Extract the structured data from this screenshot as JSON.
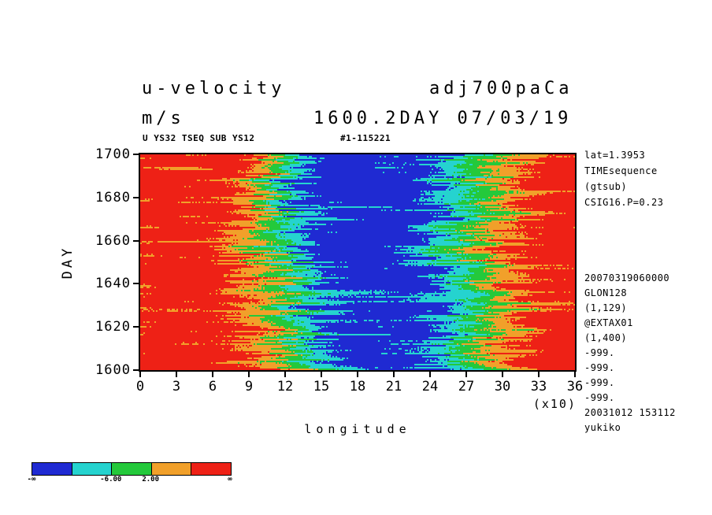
{
  "titles": {
    "left_line1": "u-velocity",
    "left_line2": "m/s",
    "right_line1": "adj700paCa",
    "right_line2": "1600.2DAY 07/03/19"
  },
  "subheader": {
    "left": "U YS32 TSEQ SUB YS12",
    "right": "#1-115221"
  },
  "axes": {
    "y_label": "DAY",
    "x_label": "longitude",
    "x_unit": "(x10)"
  },
  "right_panel": {
    "block1": [
      "lat=1.3953",
      "TIMEsequence",
      "(gtsub)",
      "CSIG16.P=0.23"
    ],
    "block2": [
      "20070319060000",
      "GLON128",
      "(1,129)",
      "@EXTAX01",
      "(1,400)",
      "-999.",
      "-999.",
      "-999.",
      "-999.",
      "20031012 153112",
      "yukiko"
    ]
  },
  "chart_data": {
    "type": "heatmap",
    "title": "u-velocity (m/s) adj700paCa 1600.2DAY 07/03/19",
    "xlabel": "longitude (x10)",
    "ylabel": "DAY",
    "xlim": [
      0,
      36
    ],
    "ylim": [
      1600,
      1700
    ],
    "xticks": [
      0,
      3,
      6,
      9,
      12,
      15,
      18,
      21,
      24,
      27,
      30,
      33,
      36
    ],
    "yticks": [
      1700,
      1680,
      1660,
      1640,
      1620,
      1600
    ],
    "x": [
      0,
      3,
      6,
      9,
      12,
      15,
      18,
      21,
      24,
      27,
      30,
      33,
      36
    ],
    "y": [
      1700,
      1690,
      1680,
      1670,
      1660,
      1650,
      1640,
      1630,
      1620,
      1610,
      1600
    ],
    "values": [
      [
        16,
        16,
        16,
        12,
        -4,
        -20,
        -20,
        -20,
        -16,
        -4,
        6,
        14,
        16
      ],
      [
        16,
        16,
        16,
        10,
        -8,
        -20,
        -22,
        -20,
        -18,
        -8,
        2,
        12,
        16
      ],
      [
        16,
        16,
        14,
        8,
        -10,
        -22,
        -22,
        -20,
        -16,
        -6,
        4,
        14,
        16
      ],
      [
        16,
        16,
        14,
        6,
        -6,
        -18,
        -22,
        -22,
        -14,
        -2,
        8,
        14,
        16
      ],
      [
        16,
        16,
        12,
        4,
        -8,
        -20,
        -22,
        -20,
        -12,
        0,
        10,
        16,
        16
      ],
      [
        16,
        16,
        14,
        6,
        -4,
        -18,
        -22,
        -20,
        -14,
        -4,
        8,
        14,
        16
      ],
      [
        16,
        16,
        14,
        8,
        -2,
        -16,
        -22,
        -22,
        -16,
        -6,
        6,
        14,
        16
      ],
      [
        16,
        16,
        14,
        10,
        0,
        -14,
        -20,
        -22,
        -18,
        -8,
        4,
        12,
        16
      ],
      [
        16,
        16,
        14,
        8,
        -2,
        -16,
        -20,
        -20,
        -16,
        -6,
        6,
        14,
        16
      ],
      [
        16,
        16,
        16,
        10,
        2,
        -12,
        -20,
        -20,
        -14,
        -4,
        8,
        14,
        16
      ],
      [
        16,
        16,
        16,
        12,
        4,
        -10,
        -18,
        -20,
        -16,
        -2,
        10,
        16,
        16
      ]
    ],
    "thresholds": [
      -14,
      -6,
      2,
      10
    ],
    "colors": [
      "#1f2ad2",
      "#25d3cf",
      "#24c93b",
      "#f1a02a",
      "#ee2116"
    ],
    "colorbar": {
      "labels": [
        "-∞",
        "-6.00",
        "2.00",
        "∞"
      ],
      "positions": [
        0,
        0.4,
        0.6,
        1
      ]
    }
  }
}
